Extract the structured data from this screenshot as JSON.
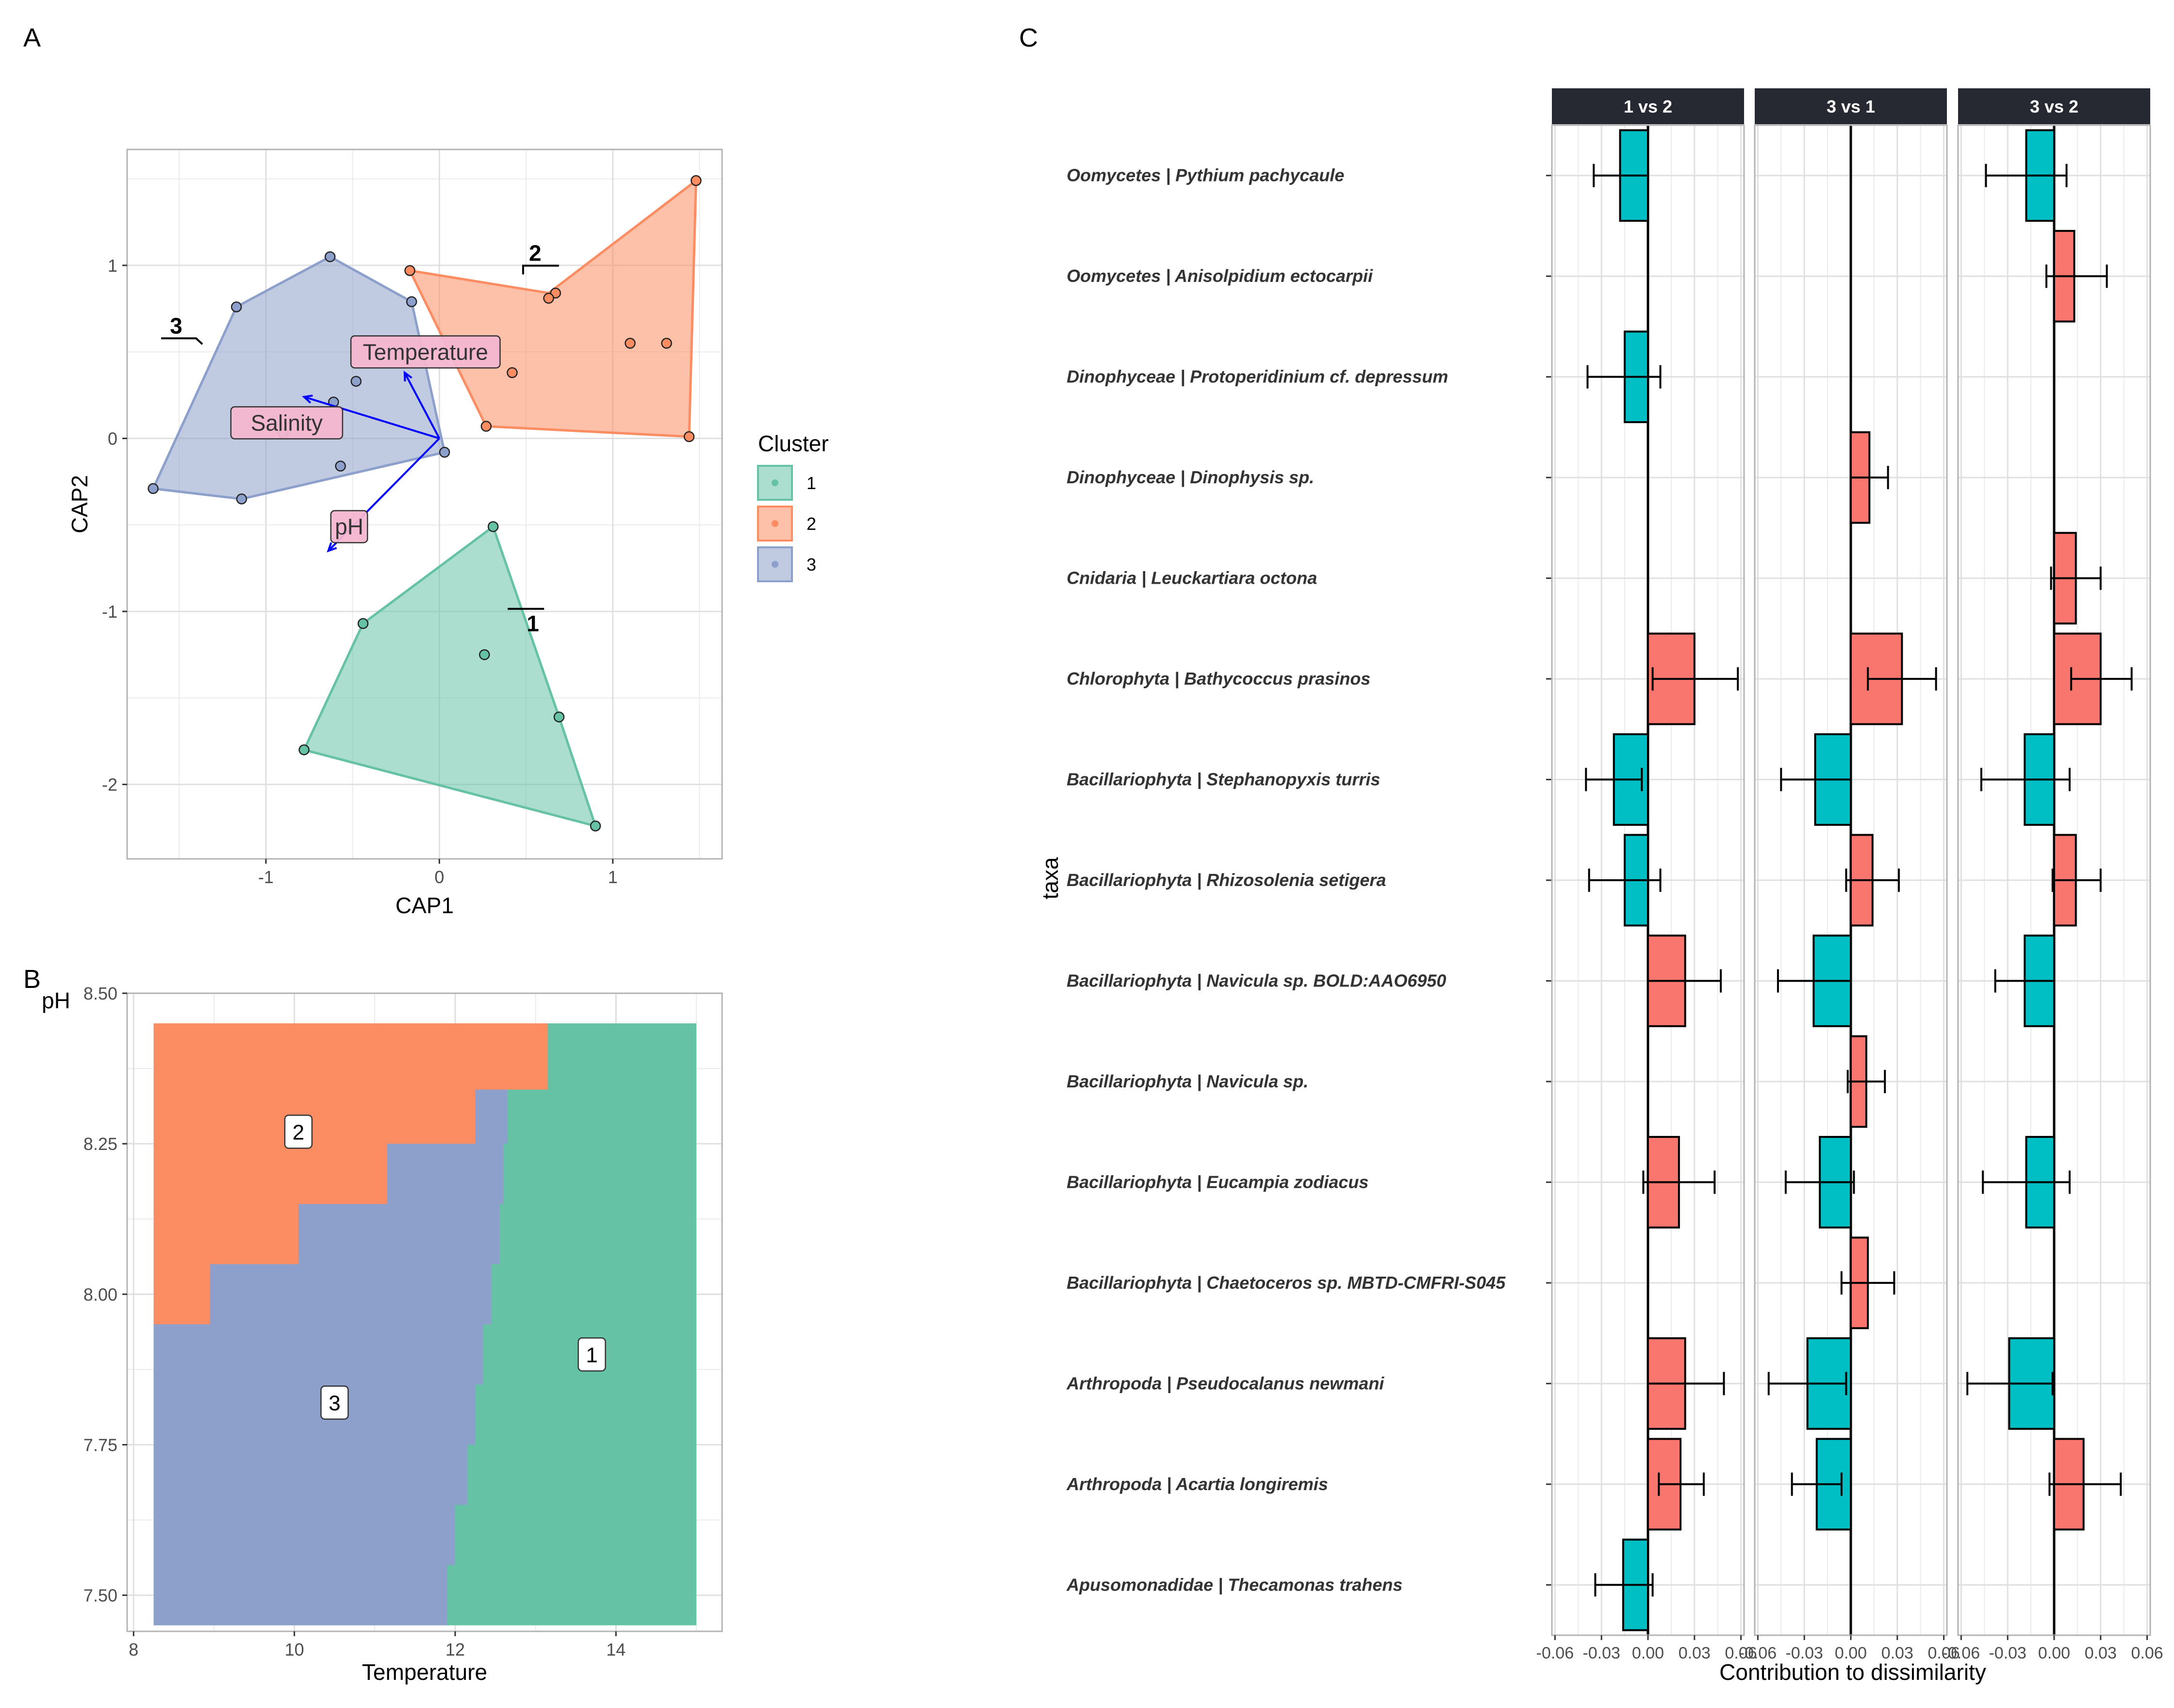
{
  "panel_labels": {
    "a": "A",
    "b": "B",
    "c": "C"
  },
  "colors": {
    "cluster1": "#66C2A5",
    "cluster2": "#FC8D62",
    "cluster3": "#8DA0CB",
    "arrow": "#0000FF",
    "increase": "#F8766D",
    "decrease": "#00BFC4",
    "strip": "#262832",
    "grid": "#E0E0E0"
  },
  "chart_data": [
    {
      "type": "scatter",
      "panel": "A",
      "xlabel": "CAP1",
      "ylabel": "CAP2",
      "xlim": [
        -1.8,
        1.63
      ],
      "ylim": [
        -2.43,
        1.67
      ],
      "xticks": [
        -1,
        0,
        1
      ],
      "yticks": [
        -2,
        -1,
        0,
        1
      ],
      "tick_labels_x": [
        "-1",
        "0",
        "1"
      ],
      "tick_labels_y": [
        "-2",
        "-1",
        "0",
        "1"
      ],
      "legend": {
        "title": "Cluster",
        "position": "right",
        "entries": [
          "1",
          "2",
          "3"
        ]
      },
      "series": [
        {
          "name": "1",
          "points": [
            [
              0.31,
              -0.51
            ],
            [
              -0.44,
              -1.07
            ],
            [
              0.26,
              -1.25
            ],
            [
              0.69,
              -1.61
            ],
            [
              -0.78,
              -1.8
            ],
            [
              0.9,
              -2.24
            ]
          ]
        },
        {
          "name": "2",
          "points": [
            [
              1.48,
              1.49
            ],
            [
              -0.17,
              0.97
            ],
            [
              0.67,
              0.84
            ],
            [
              0.63,
              0.81
            ],
            [
              1.1,
              0.55
            ],
            [
              1.31,
              0.55
            ],
            [
              0.42,
              0.38
            ],
            [
              0.27,
              0.07
            ],
            [
              1.44,
              0.01
            ]
          ]
        },
        {
          "name": "3",
          "points": [
            [
              -0.63,
              1.05
            ],
            [
              -1.17,
              0.76
            ],
            [
              -0.16,
              0.79
            ],
            [
              -0.48,
              0.33
            ],
            [
              -0.61,
              0.21
            ],
            [
              -0.9,
              0.03
            ],
            [
              0.03,
              -0.08
            ],
            [
              -0.57,
              -0.16
            ],
            [
              -1.65,
              -0.29
            ],
            [
              -1.14,
              -0.35
            ]
          ]
        }
      ],
      "hulls": [
        {
          "name": "1",
          "points": [
            [
              0.31,
              -0.51
            ],
            [
              0.69,
              -1.61
            ],
            [
              0.9,
              -2.24
            ],
            [
              -0.78,
              -1.8
            ],
            [
              -0.44,
              -1.07
            ]
          ]
        },
        {
          "name": "2",
          "points": [
            [
              1.48,
              1.49
            ],
            [
              1.44,
              0.01
            ],
            [
              0.27,
              0.07
            ],
            [
              -0.17,
              0.97
            ],
            [
              0.63,
              0.84
            ]
          ]
        },
        {
          "name": "3",
          "points": [
            [
              -0.63,
              1.05
            ],
            [
              -0.16,
              0.79
            ],
            [
              0.03,
              -0.08
            ],
            [
              -1.14,
              -0.35
            ],
            [
              -1.65,
              -0.29
            ],
            [
              -1.17,
              0.76
            ]
          ]
        }
      ],
      "hull_labels": [
        {
          "text": "1",
          "x": 0.52,
          "y": -1.03
        },
        {
          "text": "2",
          "x": 0.55,
          "y": 1.06
        },
        {
          "text": "3",
          "x": -1.52,
          "y": 0.64
        }
      ],
      "vectors": [
        {
          "label": "Temperature",
          "end": [
            -0.2,
            0.38
          ],
          "label_at": [
            -0.08,
            0.5
          ]
        },
        {
          "label": "Salinity",
          "end": [
            -0.78,
            0.24
          ],
          "label_at": [
            -0.88,
            0.09
          ]
        },
        {
          "label": "pH",
          "end": [
            -0.64,
            -0.65
          ],
          "label_at": [
            -0.52,
            -0.51
          ]
        }
      ]
    },
    {
      "type": "heatmap",
      "panel": "B",
      "xlabel": "Temperature",
      "ylabel": "pH",
      "xlim": [
        7.92,
        15.32
      ],
      "ylim": [
        7.44,
        8.5
      ],
      "xticks": [
        8,
        10,
        12,
        14
      ],
      "yticks": [
        7.5,
        7.75,
        8.0,
        8.25,
        8.5
      ],
      "tick_labels_x": [
        "8",
        "10",
        "12",
        "14"
      ],
      "tick_labels_y": [
        "7.50",
        "7.75",
        "8.00",
        "8.25",
        "8.50"
      ],
      "t_range": [
        8.25,
        15.0
      ],
      "ph_range": [
        7.45,
        8.45
      ],
      "boundary_2_3": [
        [
          8.25,
          7.95
        ],
        [
          8.95,
          7.95
        ],
        [
          8.95,
          8.05
        ],
        [
          10.05,
          8.05
        ],
        [
          10.05,
          8.15
        ],
        [
          11.15,
          8.15
        ],
        [
          11.15,
          8.25
        ],
        [
          12.25,
          8.25
        ],
        [
          12.25,
          8.34
        ],
        [
          13.15,
          8.34
        ],
        [
          13.15,
          8.45
        ]
      ],
      "boundary_3_1": [
        [
          12.75,
          8.34
        ],
        [
          12.65,
          8.25
        ],
        [
          12.6,
          8.15
        ],
        [
          12.55,
          8.05
        ],
        [
          12.45,
          7.95
        ],
        [
          12.35,
          7.85
        ],
        [
          12.25,
          7.75
        ],
        [
          12.15,
          7.65
        ],
        [
          12.0,
          7.55
        ],
        [
          11.9,
          7.45
        ]
      ],
      "region_labels": [
        {
          "text": "1",
          "x": 13.7,
          "y": 7.9
        },
        {
          "text": "2",
          "x": 10.05,
          "y": 8.27
        },
        {
          "text": "3",
          "x": 10.5,
          "y": 7.82
        }
      ]
    },
    {
      "type": "bar",
      "panel": "C",
      "xlabel": "Contribution to dissimilarity",
      "ylabel": "taxa",
      "xlim": [
        -0.062,
        0.062
      ],
      "xticks": [
        -0.06,
        -0.03,
        0.0,
        0.03,
        0.06
      ],
      "tick_labels_x": [
        "-0.06",
        "-0.03",
        "0.00",
        "0.03",
        "0.06"
      ],
      "orientation": "horizontal",
      "facets": [
        "1 vs 2",
        "3 vs 1",
        "3 vs 2"
      ],
      "categories": [
        "Oomycetes | Pythium pachycaule",
        "Oomycetes | Anisolpidium ectocarpii",
        "Dinophyceae | Protoperidinium cf. depressum",
        "Dinophyceae | Dinophysis sp.",
        "Cnidaria | Leuckartiara octona",
        "Chlorophyta | Bathycoccus prasinos",
        "Bacillariophyta | Stephanopyxis turris",
        "Bacillariophyta | Rhizosolenia setigera",
        "Bacillariophyta | Navicula sp. BOLD:AAO6950",
        "Bacillariophyta | Navicula sp.",
        "Bacillariophyta | Eucampia zodiacus",
        "Bacillariophyta | Chaetoceros sp. MBTD-CMFRI-S045",
        "Arthropoda | Pseudocalanus newmani",
        "Arthropoda | Acartia longiremis",
        "Apusomonadidae | Thecamonas trahens"
      ],
      "series": [
        {
          "facet": "1 vs 2",
          "bars": [
            {
              "i": 0,
              "value": -0.018,
              "lo": -0.035,
              "hi": 0.0
            },
            {
              "i": 2,
              "value": -0.015,
              "lo": -0.039,
              "hi": 0.008
            },
            {
              "i": 5,
              "value": 0.03,
              "lo": 0.003,
              "hi": 0.058
            },
            {
              "i": 6,
              "value": -0.022,
              "lo": -0.04,
              "hi": -0.004
            },
            {
              "i": 7,
              "value": -0.015,
              "lo": -0.038,
              "hi": 0.008
            },
            {
              "i": 8,
              "value": 0.024,
              "lo": 0.0,
              "hi": 0.047
            },
            {
              "i": 10,
              "value": 0.02,
              "lo": -0.003,
              "hi": 0.043
            },
            {
              "i": 12,
              "value": 0.024,
              "lo": 0.0,
              "hi": 0.049
            },
            {
              "i": 13,
              "value": 0.021,
              "lo": 0.007,
              "hi": 0.036
            },
            {
              "i": 14,
              "value": -0.016,
              "lo": -0.034,
              "hi": 0.003
            }
          ]
        },
        {
          "facet": "3 vs 1",
          "bars": [
            {
              "i": 3,
              "value": 0.012,
              "lo": 0.0,
              "hi": 0.024
            },
            {
              "i": 5,
              "value": 0.033,
              "lo": 0.011,
              "hi": 0.055
            },
            {
              "i": 6,
              "value": -0.023,
              "lo": -0.045,
              "hi": 0.0
            },
            {
              "i": 7,
              "value": 0.014,
              "lo": -0.003,
              "hi": 0.031
            },
            {
              "i": 8,
              "value": -0.024,
              "lo": -0.047,
              "hi": 0.0
            },
            {
              "i": 9,
              "value": 0.01,
              "lo": -0.002,
              "hi": 0.022
            },
            {
              "i": 10,
              "value": -0.02,
              "lo": -0.042,
              "hi": 0.002
            },
            {
              "i": 11,
              "value": 0.011,
              "lo": -0.006,
              "hi": 0.028
            },
            {
              "i": 12,
              "value": -0.028,
              "lo": -0.053,
              "hi": -0.003
            },
            {
              "i": 13,
              "value": -0.022,
              "lo": -0.038,
              "hi": -0.006
            }
          ]
        },
        {
          "facet": "3 vs 2",
          "bars": [
            {
              "i": 0,
              "value": -0.018,
              "lo": -0.044,
              "hi": 0.008
            },
            {
              "i": 1,
              "value": 0.013,
              "lo": -0.005,
              "hi": 0.034
            },
            {
              "i": 4,
              "value": 0.014,
              "lo": -0.002,
              "hi": 0.03
            },
            {
              "i": 5,
              "value": 0.03,
              "lo": 0.011,
              "hi": 0.05
            },
            {
              "i": 6,
              "value": -0.019,
              "lo": -0.047,
              "hi": 0.01
            },
            {
              "i": 7,
              "value": 0.014,
              "lo": -0.001,
              "hi": 0.03
            },
            {
              "i": 8,
              "value": -0.019,
              "lo": -0.038,
              "hi": 0.0
            },
            {
              "i": 10,
              "value": -0.018,
              "lo": -0.046,
              "hi": 0.01
            },
            {
              "i": 12,
              "value": -0.029,
              "lo": -0.056,
              "hi": -0.001
            },
            {
              "i": 13,
              "value": 0.019,
              "lo": -0.003,
              "hi": 0.043
            }
          ]
        }
      ]
    }
  ]
}
